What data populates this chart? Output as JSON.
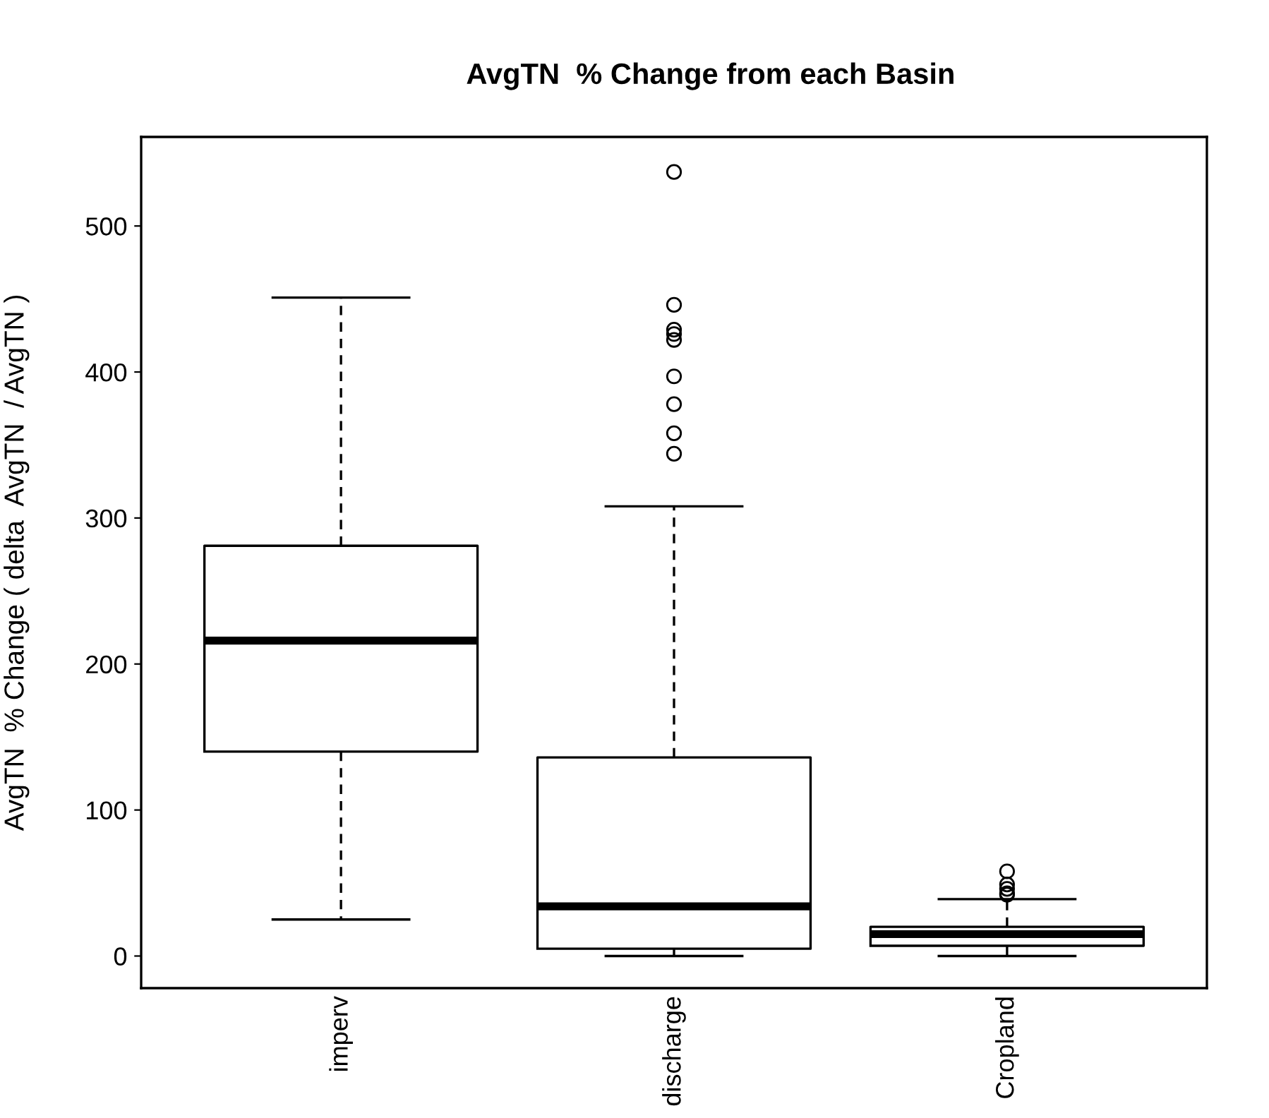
{
  "chart_data": {
    "type": "box",
    "title": "AvgTN  % Change from each Basin",
    "ylabel": "AvgTN  % Change ( delta  AvgTN  / AvgTN )",
    "categories": [
      "imperv",
      "discharge",
      "Cropland"
    ],
    "boxes": [
      {
        "low": 25,
        "q1": 140,
        "median": 216,
        "q3": 281,
        "high": 451
      },
      {
        "low": 0,
        "q1": 5,
        "median": 34,
        "q3": 136,
        "high": 308,
        "outliers": [
          537,
          446,
          429,
          426,
          422,
          397,
          378,
          358,
          344
        ]
      },
      {
        "low": 0,
        "q1": 7,
        "median": 15,
        "q3": 20,
        "high": 39,
        "outliers": [
          58,
          49,
          46,
          43,
          42
        ]
      }
    ],
    "ylim": [
      -22,
      561
    ],
    "yticks": [
      0,
      100,
      200,
      300,
      400,
      500
    ],
    "grid": false,
    "line_style": "dashed"
  }
}
